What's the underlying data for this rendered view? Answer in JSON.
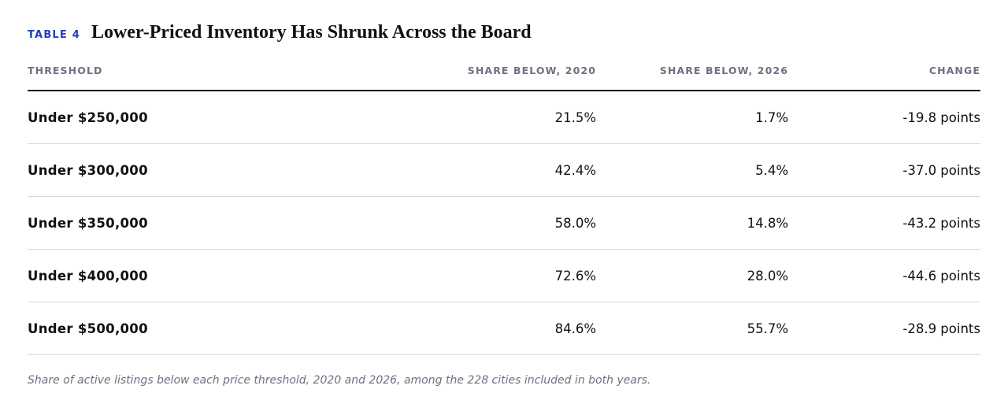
{
  "header": {
    "table_label": "TABLE 4",
    "title": "Lower-Priced Inventory Has Shrunk Across the Board"
  },
  "table": {
    "columns": [
      "THRESHOLD",
      "SHARE BELOW, 2020",
      "SHARE BELOW, 2026",
      "CHANGE"
    ],
    "rows": [
      [
        "Under $250,000",
        "21.5%",
        "1.7%",
        "-19.8 points"
      ],
      [
        "Under $300,000",
        "42.4%",
        "5.4%",
        "-37.0 points"
      ],
      [
        "Under $350,000",
        "58.0%",
        "14.8%",
        "-43.2 points"
      ],
      [
        "Under $400,000",
        "72.6%",
        "28.0%",
        "-44.6 points"
      ],
      [
        "Under $500,000",
        "84.6%",
        "55.7%",
        "-28.9 points"
      ]
    ]
  },
  "footnote": "Share of active listings below each price threshold, 2020 and 2026, among the 228 cities included in both years.",
  "colors": {
    "accent": "#1d3fbf",
    "header_text": "#6b7280",
    "rule": "#111111",
    "row_divider": "#d9d9d9"
  }
}
